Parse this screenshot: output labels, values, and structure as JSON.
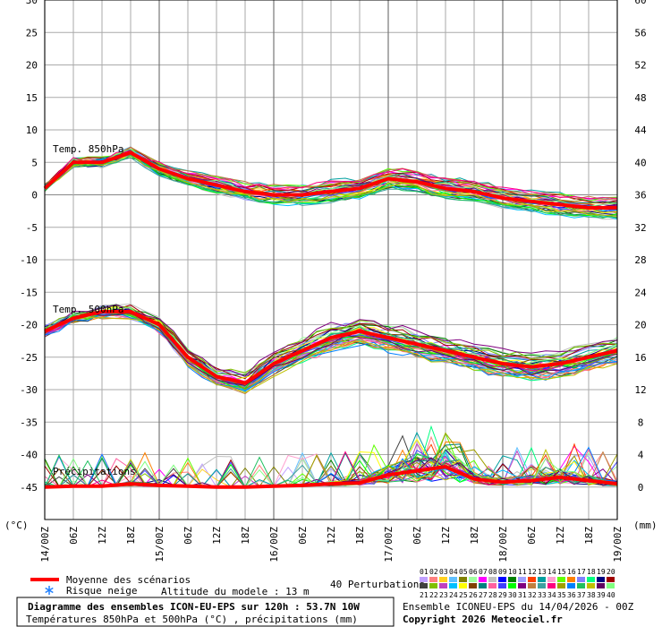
{
  "chart_data": {
    "type": "line",
    "plot_colors": {
      "grid": "#999999",
      "mean": "#ff0000",
      "frame": "#000000"
    },
    "left_axis": {
      "unit": "(°C)",
      "ylim": [
        -50,
        30
      ],
      "ticks": [
        30,
        25,
        20,
        15,
        10,
        5,
        0,
        -5,
        -10,
        -15,
        -20,
        -25,
        -30,
        -35,
        -40,
        -45
      ]
    },
    "right_axis": {
      "unit": "(mm)",
      "ticks": [
        60,
        56,
        52,
        48,
        44,
        40,
        36,
        32,
        28,
        24,
        20,
        16,
        12,
        8,
        4,
        0
      ],
      "scale": "0 mm at -45 °C, 4 mm per 5 °C"
    },
    "x_axis": {
      "range_hours": [
        0,
        120
      ],
      "tick_labels": [
        "14/00Z",
        "06Z",
        "12Z",
        "18Z",
        "15/00Z",
        "06Z",
        "12Z",
        "18Z",
        "16/00Z",
        "06Z",
        "12Z",
        "18Z",
        "17/00Z",
        "06Z",
        "12Z",
        "18Z",
        "18/00Z",
        "06Z",
        "12Z",
        "18Z",
        "19/00Z"
      ]
    },
    "series_labels": {
      "t850": "Temp. 850hPa",
      "t500": "Temp. 500hPa",
      "precip": "Précipitations"
    },
    "series": [
      {
        "name": "Moyenne des scénarios (850hPa)",
        "x": [
          0,
          6,
          12,
          18,
          24,
          30,
          36,
          42,
          48,
          54,
          60,
          66,
          72,
          78,
          84,
          90,
          96,
          102,
          108,
          114,
          120
        ],
        "values": [
          1,
          5,
          5,
          6.5,
          4,
          2.5,
          1.5,
          0.5,
          0,
          0,
          0.5,
          1,
          2.5,
          2,
          1,
          0.5,
          -0.5,
          -1,
          -1.5,
          -2,
          -2
        ]
      },
      {
        "name": "Moyenne des scénarios (500hPa)",
        "x": [
          0,
          6,
          12,
          18,
          24,
          30,
          36,
          42,
          48,
          54,
          60,
          66,
          72,
          78,
          84,
          90,
          96,
          102,
          108,
          114,
          120
        ],
        "values": [
          -21,
          -19,
          -18,
          -18,
          -20,
          -25,
          -28,
          -29,
          -26,
          -24,
          -22,
          -21,
          -22,
          -23,
          -24,
          -25,
          -26,
          -26.5,
          -26,
          -25,
          -24
        ]
      },
      {
        "name": "Moyenne des scénarios (précipitations, mm)",
        "x": [
          0,
          6,
          12,
          18,
          24,
          30,
          36,
          42,
          48,
          54,
          60,
          66,
          72,
          78,
          84,
          90,
          96,
          102,
          108,
          114,
          120
        ],
        "values": [
          0,
          0.1,
          0.1,
          0.4,
          0.2,
          0.1,
          0,
          0,
          0.1,
          0.2,
          0.4,
          0.5,
          1.5,
          2,
          2.5,
          1,
          0.6,
          0.8,
          1.2,
          0.8,
          0.4
        ]
      }
    ]
  },
  "legend": {
    "mean_label": "Moyenne des scénarios",
    "snow_label": "Risque neige",
    "altitude": "Altitude du modele : 13 m",
    "perturbations": "40 Perturbations",
    "members": [
      "01",
      "02",
      "03",
      "04",
      "05",
      "06",
      "07",
      "08",
      "09",
      "10",
      "11",
      "12",
      "13",
      "14",
      "15",
      "16",
      "17",
      "18",
      "19",
      "20",
      "21",
      "22",
      "23",
      "24",
      "25",
      "26",
      "27",
      "28",
      "29",
      "30",
      "31",
      "32",
      "33",
      "34",
      "35",
      "36",
      "37",
      "38",
      "39",
      "40"
    ],
    "member_colors": [
      "#c0a0ff",
      "#ff8080",
      "#ffd020",
      "#60c0ff",
      "#808000",
      "#a0ffa0",
      "#ff00ff",
      "#c0c0c0",
      "#0000ff",
      "#008000",
      "#a0a0ff",
      "#ff4000",
      "#00a0a0",
      "#ffa0d0",
      "#60ff00",
      "#ff8000",
      "#8080ff",
      "#00ff80",
      "#000080",
      "#a00000",
      "#404040",
      "#80c000",
      "#c040c0",
      "#00c0ff",
      "#ffff00",
      "#804000",
      "#008080",
      "#ff60a0",
      "#4040ff",
      "#00ff00",
      "#800080",
      "#c08040",
      "#40a0a0",
      "#ff0080",
      "#a0a000",
      "#0080ff",
      "#20c060",
      "#c0c000",
      "#600060",
      "#80ff80"
    ]
  },
  "footer": {
    "title": "Diagramme des ensembles ICON-EU-EPS sur 120h : 53.7N 10W",
    "subtitle": "Températures 850hPa et 500hPa (°C) , précipitations (mm)",
    "run": "Ensemble ICONEU-EPS du 14/04/2026 - 00Z",
    "copyright": "Copyright 2026 Meteociel.fr"
  }
}
